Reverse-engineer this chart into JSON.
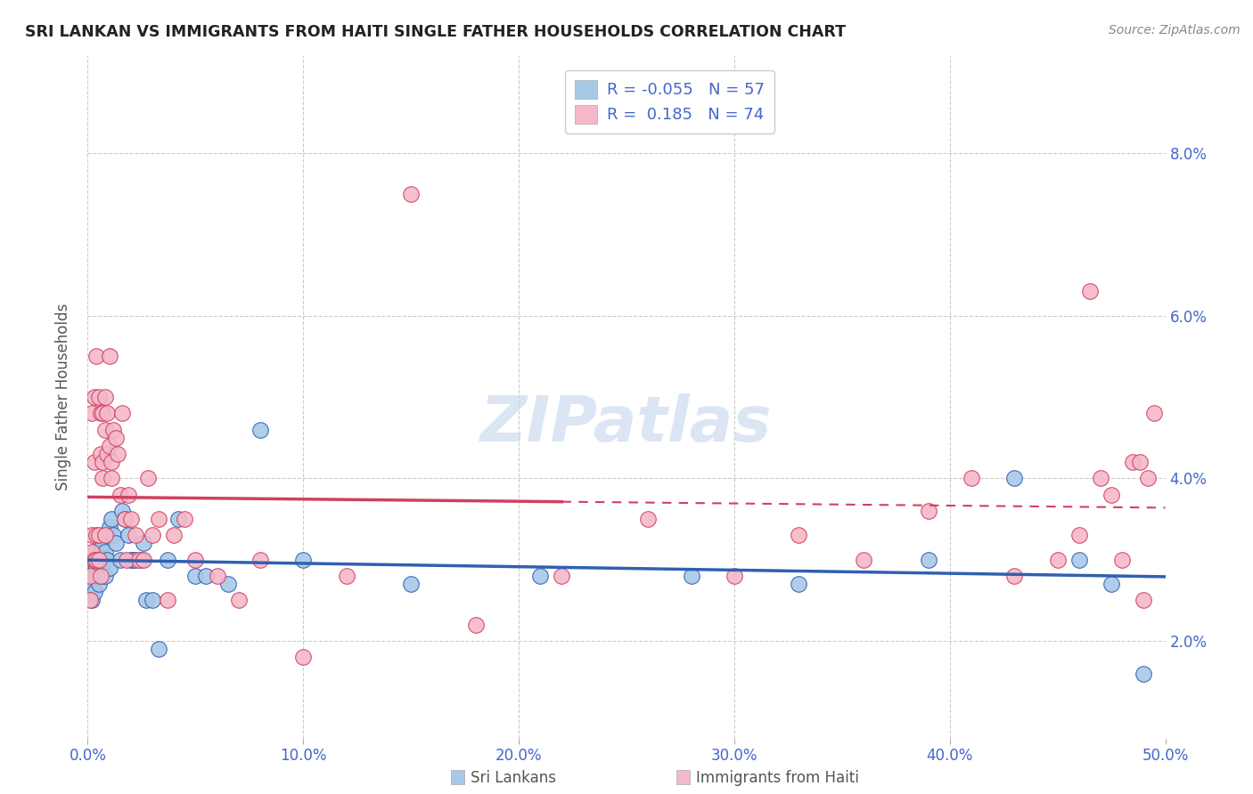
{
  "title": "SRI LANKAN VS IMMIGRANTS FROM HAITI SINGLE FATHER HOUSEHOLDS CORRELATION CHART",
  "source": "Source: ZipAtlas.com",
  "ylabel_label": "Single Father Households",
  "legend_group1_label": "Sri Lankans",
  "legend_group2_label": "Immigrants from Haiti",
  "R1": -0.055,
  "N1": 57,
  "R2": 0.185,
  "N2": 74,
  "color1": "#a8c8e8",
  "color2": "#f4b8c8",
  "line_color1": "#3060b0",
  "line_color2": "#d04060",
  "background_color": "#ffffff",
  "grid_color": "#cccccc",
  "title_color": "#222222",
  "axis_label_color": "#4466cc",
  "xlim": [
    0.0,
    0.5
  ],
  "ylim": [
    0.008,
    0.092
  ],
  "xtick_vals": [
    0.0,
    0.1,
    0.2,
    0.3,
    0.4,
    0.5
  ],
  "ytick_vals": [
    0.02,
    0.04,
    0.06,
    0.08
  ],
  "xlabel_ticks": [
    "0.0%",
    "10.0%",
    "20.0%",
    "30.0%",
    "40.0%",
    "50.0%"
  ],
  "ylabel_ticks": [
    "2.0%",
    "4.0%",
    "6.0%",
    "8.0%"
  ],
  "sri_lankans_x": [
    0.001,
    0.001,
    0.002,
    0.002,
    0.002,
    0.003,
    0.003,
    0.003,
    0.003,
    0.004,
    0.004,
    0.004,
    0.005,
    0.005,
    0.005,
    0.006,
    0.006,
    0.006,
    0.007,
    0.007,
    0.008,
    0.008,
    0.009,
    0.009,
    0.01,
    0.01,
    0.011,
    0.012,
    0.013,
    0.015,
    0.016,
    0.017,
    0.019,
    0.02,
    0.021,
    0.022,
    0.025,
    0.026,
    0.027,
    0.03,
    0.033,
    0.037,
    0.042,
    0.05,
    0.055,
    0.065,
    0.08,
    0.1,
    0.15,
    0.21,
    0.28,
    0.33,
    0.39,
    0.43,
    0.46,
    0.475,
    0.49
  ],
  "sri_lankans_y": [
    0.028,
    0.026,
    0.03,
    0.027,
    0.025,
    0.03,
    0.028,
    0.031,
    0.026,
    0.03,
    0.029,
    0.028,
    0.028,
    0.03,
    0.027,
    0.029,
    0.031,
    0.028,
    0.03,
    0.032,
    0.031,
    0.028,
    0.03,
    0.033,
    0.029,
    0.034,
    0.035,
    0.033,
    0.032,
    0.03,
    0.036,
    0.035,
    0.033,
    0.03,
    0.03,
    0.03,
    0.03,
    0.032,
    0.025,
    0.025,
    0.019,
    0.03,
    0.035,
    0.028,
    0.028,
    0.027,
    0.046,
    0.03,
    0.027,
    0.028,
    0.028,
    0.027,
    0.03,
    0.04,
    0.03,
    0.027,
    0.016
  ],
  "haiti_x": [
    0.001,
    0.001,
    0.002,
    0.002,
    0.002,
    0.003,
    0.003,
    0.003,
    0.004,
    0.004,
    0.004,
    0.005,
    0.005,
    0.005,
    0.006,
    0.006,
    0.006,
    0.007,
    0.007,
    0.007,
    0.008,
    0.008,
    0.008,
    0.009,
    0.009,
    0.01,
    0.01,
    0.011,
    0.011,
    0.012,
    0.013,
    0.014,
    0.015,
    0.016,
    0.017,
    0.018,
    0.019,
    0.02,
    0.022,
    0.024,
    0.026,
    0.028,
    0.03,
    0.033,
    0.037,
    0.04,
    0.045,
    0.05,
    0.06,
    0.07,
    0.08,
    0.1,
    0.12,
    0.15,
    0.18,
    0.22,
    0.26,
    0.3,
    0.33,
    0.36,
    0.39,
    0.41,
    0.43,
    0.45,
    0.46,
    0.465,
    0.47,
    0.475,
    0.48,
    0.485,
    0.488,
    0.49,
    0.492,
    0.495
  ],
  "haiti_y": [
    0.028,
    0.025,
    0.031,
    0.048,
    0.033,
    0.042,
    0.05,
    0.03,
    0.055,
    0.033,
    0.03,
    0.033,
    0.05,
    0.03,
    0.048,
    0.043,
    0.028,
    0.042,
    0.04,
    0.048,
    0.05,
    0.046,
    0.033,
    0.048,
    0.043,
    0.044,
    0.055,
    0.04,
    0.042,
    0.046,
    0.045,
    0.043,
    0.038,
    0.048,
    0.035,
    0.03,
    0.038,
    0.035,
    0.033,
    0.03,
    0.03,
    0.04,
    0.033,
    0.035,
    0.025,
    0.033,
    0.035,
    0.03,
    0.028,
    0.025,
    0.03,
    0.018,
    0.028,
    0.075,
    0.022,
    0.028,
    0.035,
    0.028,
    0.033,
    0.03,
    0.036,
    0.04,
    0.028,
    0.03,
    0.033,
    0.063,
    0.04,
    0.038,
    0.03,
    0.042,
    0.042,
    0.025,
    0.04,
    0.048
  ]
}
